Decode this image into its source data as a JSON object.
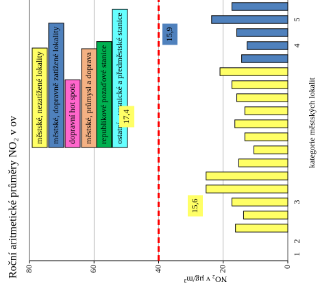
{
  "chart_data": {
    "type": "bar",
    "title": "Roční aritmetické průměry NO₂ v ov",
    "x_label": "kategorie městských lokalit",
    "y_label": "NO₂ v µg/m³",
    "categories": [
      "1",
      "2",
      null,
      null,
      "3",
      null,
      null,
      null,
      null,
      null,
      null,
      null,
      null,
      null,
      null,
      null,
      "4",
      null,
      "5",
      null
    ],
    "series": [
      {
        "name": "městské, nezatížené lokality",
        "color": "#ffff66",
        "values": [
          null,
          null,
          16.2,
          13.7,
          17.3,
          25.3,
          25.3,
          15.2,
          10.5,
          13.3,
          16.4,
          13.3,
          15.8,
          17.3,
          21,
          null,
          null,
          null,
          null,
          null
        ]
      },
      {
        "name": "městské, dopravně zatížené lokality",
        "color": "#4f81bd",
        "values": [
          null,
          null,
          null,
          null,
          null,
          null,
          null,
          null,
          null,
          null,
          null,
          null,
          null,
          null,
          null,
          14.3,
          12.6,
          15.8,
          23.6,
          17.3
        ]
      },
      {
        "name": "dopravní hot spots",
        "color": "#ff66cc",
        "values": [
          null,
          null,
          null,
          null,
          null,
          null,
          null,
          null,
          null,
          null,
          null,
          null,
          null,
          null,
          null,
          null,
          null,
          null,
          null,
          null
        ]
      },
      {
        "name": "městské, průmysl a doprava",
        "color": "#f4b183",
        "values": [
          null,
          null,
          null,
          null,
          null,
          null,
          null,
          null,
          null,
          null,
          null,
          null,
          null,
          null,
          null,
          null,
          null,
          null,
          null,
          null
        ]
      },
      {
        "name": "republikové pozaďové stanice",
        "color": "#00b050",
        "values": [
          null,
          null,
          null,
          null,
          null,
          null,
          null,
          null,
          null,
          null,
          null,
          null,
          null,
          null,
          null,
          null,
          null,
          null,
          null,
          null
        ]
      },
      {
        "name": "ostatní - vesnické a předměstské stanice",
        "color": "#66ffff",
        "values": [
          null,
          null,
          null,
          null,
          null,
          null,
          null,
          null,
          null,
          null,
          null,
          null,
          null,
          null,
          null,
          null,
          null,
          null,
          null,
          null
        ]
      }
    ],
    "annotations": [
      {
        "text": "15,6",
        "color": "#ffff66"
      },
      {
        "text": "17,4",
        "color": "#ffff66"
      },
      {
        "text": "15,9",
        "color": "#4f81bd"
      }
    ],
    "limit_line": {
      "value": 40,
      "color": "#ff0000"
    },
    "ylim": [
      0,
      80
    ],
    "yticks": [
      0,
      20,
      40,
      60,
      80
    ],
    "grid": true
  }
}
